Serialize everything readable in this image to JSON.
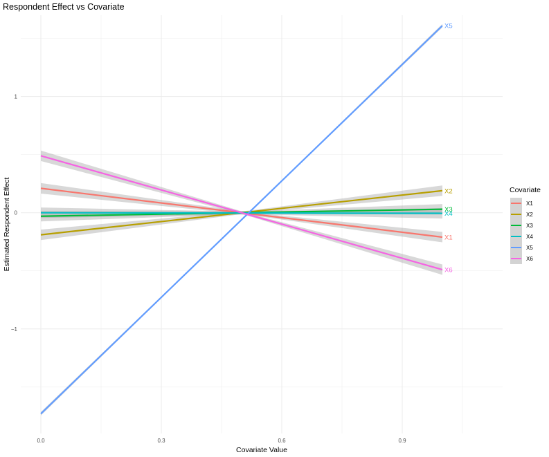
{
  "chart_data": {
    "type": "line",
    "title": "Respondent Effect vs Covariate",
    "xlabel": "Covariate Value",
    "ylabel": "Estimated Respondent Effect",
    "xlim": [
      -0.05,
      1.15
    ],
    "ylim": [
      -1.9,
      1.7
    ],
    "x_ticks": [
      0.0,
      0.3,
      0.6,
      0.9
    ],
    "x_tick_labels": [
      "0.0",
      "0.3",
      "0.6",
      "0.9"
    ],
    "y_ticks": [
      -1,
      0,
      1
    ],
    "y_tick_labels": [
      "−1",
      "0",
      "1"
    ],
    "grid": true,
    "legend": {
      "title": "Covariate",
      "position": "right"
    },
    "series": [
      {
        "name": "X1",
        "color": "#F8766D",
        "x": [
          0.0,
          1.0
        ],
        "y": [
          0.21,
          -0.21
        ],
        "band": 0.045
      },
      {
        "name": "X2",
        "color": "#B79F00",
        "x": [
          0.0,
          1.0
        ],
        "y": [
          -0.19,
          0.19
        ],
        "band": 0.045
      },
      {
        "name": "X3",
        "color": "#00BA38",
        "x": [
          0.0,
          1.0
        ],
        "y": [
          -0.03,
          0.03
        ],
        "band": 0.045
      },
      {
        "name": "X4",
        "color": "#00BFC4",
        "x": [
          0.0,
          1.0
        ],
        "y": [
          0.0,
          -0.005
        ],
        "band": 0.045
      },
      {
        "name": "X5",
        "color": "#619CFF",
        "x": [
          0.0,
          1.0
        ],
        "y": [
          -1.73,
          1.61
        ],
        "band": 0.015
      },
      {
        "name": "X6",
        "color": "#F564E3",
        "x": [
          0.0,
          1.0
        ],
        "y": [
          0.49,
          -0.49
        ],
        "band": 0.045
      }
    ],
    "end_labels": [
      {
        "text": "X5",
        "color": "#619CFF",
        "y": 1.61
      },
      {
        "text": "X2",
        "color": "#B79F00",
        "y": 0.19
      },
      {
        "text": "X3",
        "color": "#00BA38",
        "y": 0.03
      },
      {
        "text": "X4",
        "color": "#00BFC4",
        "y": -0.005
      },
      {
        "text": "X1",
        "color": "#F8766D",
        "y": -0.21
      },
      {
        "text": "X6",
        "color": "#F564E3",
        "y": -0.49
      }
    ]
  }
}
